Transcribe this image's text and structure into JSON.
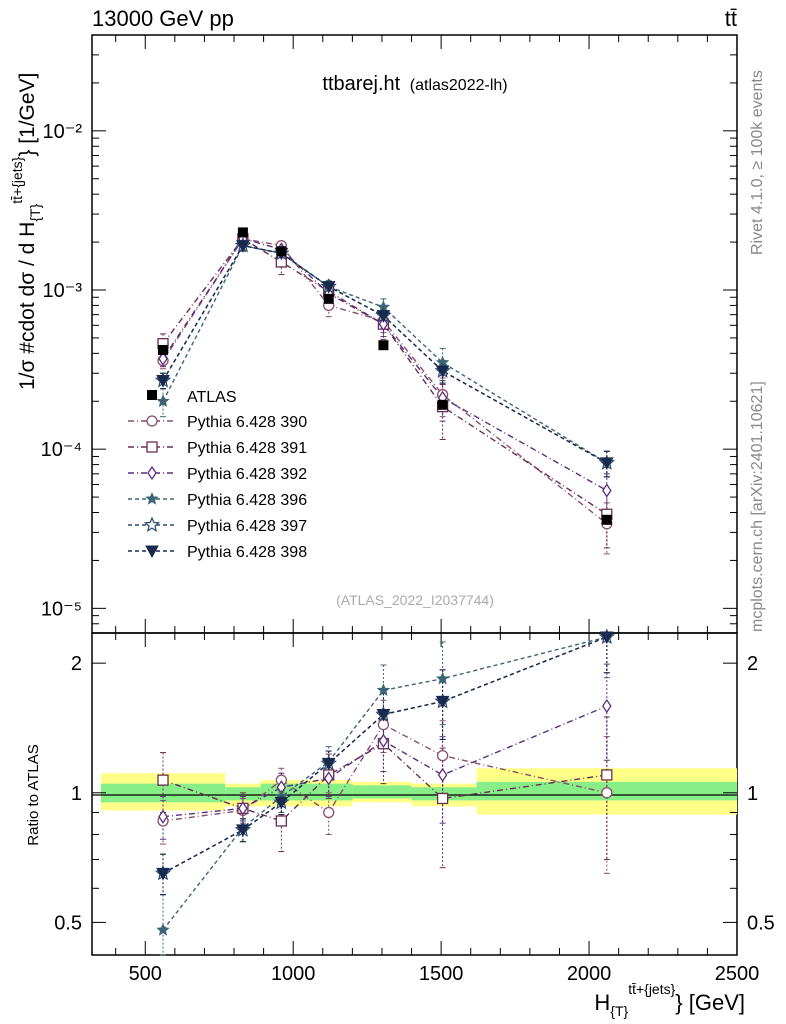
{
  "header": {
    "energy_label": "13000 GeV pp",
    "process_label": "tt̄",
    "plot_title": "ttbarej.ht",
    "plot_subtitle": "(atlas2022-lh)",
    "watermark": "(ATLAS_2022_I2037744)",
    "side_label_top": "Rivet 4.1.0, ≥ 100k events",
    "side_label_bottom": "mcplots.cern.ch [arXiv:2401.10621]"
  },
  "chart_data": [
    {
      "panel": "main",
      "type": "line",
      "title": "ttbarej.ht (atlas2022-lh)",
      "ylabel": "1/σ #cdot dσ / d H_{T}^{tt̄+{jets}} [1/GeV]",
      "ylabel_parts": {
        "main": "1/σ #cdot dσ / d H",
        "sub": "{T}",
        "sup": "tt̄+{jets}",
        "tail": "} [1/GeV]"
      },
      "yscale": "log",
      "ylim": [
        7e-06,
        0.04
      ],
      "xlim": [
        320,
        2500
      ],
      "y_ticks": [
        {
          "value": 0.01,
          "label": "10⁻²"
        },
        {
          "value": 0.001,
          "label": "10⁻³"
        },
        {
          "value": 0.0001,
          "label": "10⁻⁴"
        },
        {
          "value": 1e-05,
          "label": "10⁻⁵"
        }
      ],
      "legend_position": "lower-left",
      "data": {
        "name": "ATLAS",
        "x": [
          560,
          830,
          960,
          1120,
          1305,
          1505,
          2060
        ],
        "y": [
          0.00042,
          0.0023,
          0.00175,
          0.00088,
          0.00045,
          0.00019,
          3.6e-05
        ]
      },
      "series": [
        {
          "name": "Pythia 6.428 390",
          "color": "#8a4f6b",
          "marker": "circle-open",
          "dash": "6,3,1,3",
          "x": [
            560,
            830,
            960,
            1120,
            1305,
            1505,
            2060
          ],
          "y": [
            0.00036,
            0.0021,
            0.0019,
            0.0008,
            0.00064,
            0.00022,
            3.4e-05
          ],
          "err": [
            4e-05,
            0.00015,
            0.00012,
            0.00012,
            0.0001,
            6e-05,
            1.2e-05
          ]
        },
        {
          "name": "Pythia 6.428 391",
          "color": "#6b2d4e",
          "marker": "square-open",
          "dash": "6,3,1,3",
          "x": [
            560,
            830,
            960,
            1120,
            1305,
            1505,
            2060
          ],
          "y": [
            0.00046,
            0.0021,
            0.0015,
            0.00098,
            0.00061,
            0.000185,
            3.9e-05
          ],
          "err": [
            7e-05,
            0.00018,
            0.00025,
            0.00012,
            0.00012,
            7e-05,
            1.5e-05
          ]
        },
        {
          "name": "Pythia 6.428 392",
          "color": "#5a2d82",
          "marker": "diamond-open",
          "dash": "6,3,1,3",
          "x": [
            560,
            830,
            960,
            1120,
            1305,
            1505,
            2060
          ],
          "y": [
            0.00037,
            0.0021,
            0.0018,
            0.00095,
            0.00061,
            0.00021,
            5.5e-05
          ],
          "err": [
            4e-05,
            0.00015,
            0.00015,
            0.0001,
            0.0001,
            6e-05,
            1.5e-05
          ]
        },
        {
          "name": "Pythia 6.428 396",
          "color": "#3d6575",
          "marker": "star-filled",
          "dash": "4,3",
          "x": [
            560,
            830,
            960,
            1120,
            1305,
            1505,
            2060
          ],
          "y": [
            0.0002,
            0.0019,
            0.0017,
            0.00105,
            0.00078,
            0.00035,
            8.2e-05
          ],
          "err": [
            4e-05,
            0.00015,
            0.00015,
            0.0001,
            0.0001,
            8e-05,
            1.5e-05
          ]
        },
        {
          "name": "Pythia 6.428 397",
          "color": "#2b4a6b",
          "marker": "star-open",
          "dash": "4,3",
          "x": [
            560,
            830,
            960,
            1120,
            1305,
            1505,
            2060
          ],
          "y": [
            0.00027,
            0.0019,
            0.0017,
            0.00105,
            0.00069,
            0.00031,
            8.2e-05
          ],
          "err": [
            3e-05,
            0.00012,
            0.00012,
            8e-05,
            8e-05,
            5e-05,
            1.5e-05
          ]
        },
        {
          "name": "Pythia 6.428 398",
          "color": "#1a2a4f",
          "marker": "triangle-down-filled",
          "dash": "4,3",
          "x": [
            560,
            830,
            960,
            1120,
            1305,
            1505,
            2060
          ],
          "y": [
            0.00027,
            0.0019,
            0.0017,
            0.00105,
            0.00069,
            0.00031,
            8.2e-05
          ],
          "err": [
            3e-05,
            0.00012,
            0.00012,
            8e-05,
            8e-05,
            5e-05,
            1.5e-05
          ]
        }
      ]
    },
    {
      "panel": "ratio",
      "type": "line",
      "ylabel": "Ratio to ATLAS",
      "yscale": "log",
      "ylim": [
        0.42,
        2.35
      ],
      "xlim": [
        320,
        2500
      ],
      "xlabel": "H_{T}^{tt̄+{jets}} [GeV]",
      "xlabel_parts": {
        "main": "H",
        "sub": "{T}",
        "sup": "tt̄+{jets}",
        "tail": "} [GeV]"
      },
      "x_ticks": [
        500,
        1000,
        1500,
        2000,
        2500
      ],
      "y_ticks": [
        {
          "value": 0.5,
          "label": "0.5"
        },
        {
          "value": 1,
          "label": "1"
        },
        {
          "value": 2,
          "label": "2"
        }
      ],
      "bands": [
        {
          "x0": 350,
          "x1": 770,
          "inner": [
            0.95,
            1.05
          ],
          "outer": [
            0.91,
            1.11
          ]
        },
        {
          "x0": 770,
          "x1": 890,
          "inner": [
            0.96,
            1.03
          ],
          "outer": [
            0.93,
            1.05
          ]
        },
        {
          "x0": 890,
          "x1": 1040,
          "inner": [
            0.96,
            1.05
          ],
          "outer": [
            0.93,
            1.07
          ]
        },
        {
          "x0": 1040,
          "x1": 1200,
          "inner": [
            0.96,
            1.05
          ],
          "outer": [
            0.93,
            1.07
          ]
        },
        {
          "x0": 1200,
          "x1": 1400,
          "inner": [
            0.97,
            1.04
          ],
          "outer": [
            0.95,
            1.06
          ]
        },
        {
          "x0": 1400,
          "x1": 1620,
          "inner": [
            0.96,
            1.03
          ],
          "outer": [
            0.93,
            1.05
          ]
        },
        {
          "x0": 1620,
          "x1": 2500,
          "inner": [
            0.96,
            1.06
          ],
          "outer": [
            0.89,
            1.14
          ]
        }
      ],
      "series": [
        {
          "name": "Pythia 6.428 390",
          "x": [
            560,
            830,
            960,
            1120,
            1305,
            1505,
            2060
          ],
          "y": [
            0.86,
            0.91,
            1.07,
            0.9,
            1.44,
            1.22,
            1.0
          ],
          "err": [
            0.1,
            0.06,
            0.07,
            0.1,
            0.2,
            0.25,
            0.35
          ]
        },
        {
          "name": "Pythia 6.428 391",
          "x": [
            560,
            830,
            960,
            1120,
            1305,
            1505,
            2060
          ],
          "y": [
            1.07,
            0.92,
            0.86,
            1.1,
            1.3,
            0.97,
            1.1
          ],
          "err": [
            0.17,
            0.08,
            0.13,
            0.13,
            0.25,
            0.3,
            0.4
          ]
        },
        {
          "name": "Pythia 6.428 392",
          "x": [
            560,
            830,
            960,
            1120,
            1305,
            1505,
            2060
          ],
          "y": [
            0.88,
            0.92,
            1.03,
            1.08,
            1.32,
            1.1,
            1.59
          ],
          "err": [
            0.1,
            0.06,
            0.08,
            0.1,
            0.2,
            0.25,
            0.4
          ]
        },
        {
          "name": "Pythia 6.428 396",
          "x": [
            560,
            830,
            960,
            1120,
            1305,
            1505,
            2060
          ],
          "y": [
            0.48,
            0.83,
            0.98,
            1.18,
            1.73,
            1.84,
            2.3
          ],
          "err": [
            0.1,
            0.06,
            0.08,
            0.1,
            0.25,
            0.4,
            0.45
          ]
        },
        {
          "name": "Pythia 6.428 397",
          "x": [
            560,
            830,
            960,
            1120,
            1305,
            1505,
            2060
          ],
          "y": [
            0.65,
            0.82,
            0.95,
            1.17,
            1.52,
            1.63,
            2.3
          ],
          "err": [
            0.07,
            0.05,
            0.06,
            0.08,
            0.18,
            0.3,
            0.4
          ]
        },
        {
          "name": "Pythia 6.428 398",
          "x": [
            560,
            830,
            960,
            1120,
            1305,
            1505,
            2060
          ],
          "y": [
            0.65,
            0.82,
            0.95,
            1.17,
            1.52,
            1.63,
            2.3
          ],
          "err": [
            0.07,
            0.05,
            0.06,
            0.08,
            0.18,
            0.3,
            0.4
          ]
        }
      ]
    }
  ]
}
